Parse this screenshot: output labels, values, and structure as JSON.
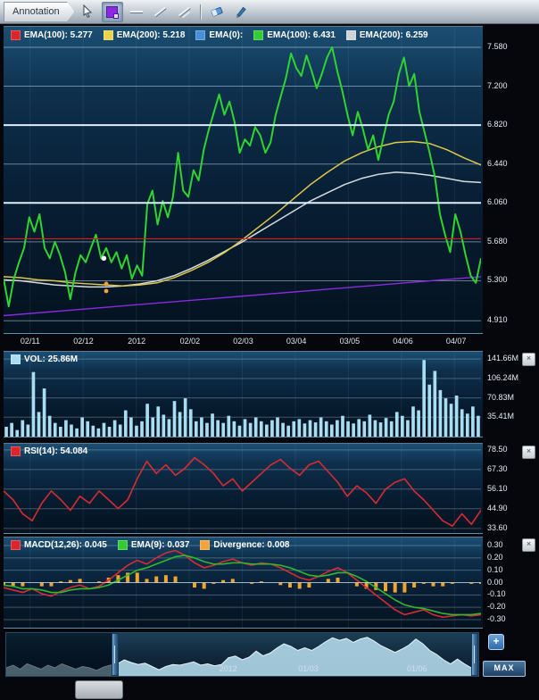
{
  "toolbar": {
    "annotation_label": "Annotation",
    "tools": [
      {
        "name": "cursor-tool",
        "icon": "cursor-icon",
        "selected": false
      },
      {
        "name": "rectangle-annotation-tool",
        "icon": "rectangle-icon",
        "selected": true
      },
      {
        "name": "horizontal-line-tool",
        "icon": "horizontal-line-icon",
        "selected": false
      },
      {
        "name": "diagonal-line-tool",
        "icon": "diagonal-line-icon",
        "selected": false
      },
      {
        "name": "channel-line-tool",
        "icon": "channel-line-icon",
        "selected": false
      },
      {
        "name": "eraser-tool",
        "icon": "eraser-icon",
        "selected": false
      },
      {
        "name": "pen-tool",
        "icon": "pen-icon",
        "selected": false
      }
    ]
  },
  "ui": {
    "close_glyph": "×",
    "plus_label": "+",
    "max_label": "MAX"
  },
  "chart_data": [
    {
      "id": "price",
      "type": "line",
      "grid_alpha": 0.5,
      "legend": [
        {
          "label": "EMA(100): 5.277",
          "color": "#d9262c"
        },
        {
          "label": "EMA(200): 5.218",
          "color": "#e8d44d"
        },
        {
          "label": "EMA(0):",
          "color": "#4a90d9"
        },
        {
          "label": "EMA(100): 6.431",
          "color": "#33cc33"
        },
        {
          "label": "EMA(200): 6.259",
          "color": "#d0d4d8"
        }
      ],
      "ylim": [
        4.79,
        7.78
      ],
      "yticks": [
        {
          "v": 7.58,
          "t": "7.580"
        },
        {
          "v": 7.2,
          "t": "7.200"
        },
        {
          "v": 6.82,
          "t": "6.820"
        },
        {
          "v": 6.44,
          "t": "6.440"
        },
        {
          "v": 6.06,
          "t": "6.060"
        },
        {
          "v": 5.68,
          "t": "5.680"
        },
        {
          "v": 5.3,
          "t": "5.300"
        },
        {
          "v": 4.91,
          "t": "4.910"
        }
      ],
      "xticks": [
        "02/11",
        "02/12",
        "2012",
        "02/02",
        "02/03",
        "03/04",
        "03/05",
        "04/06",
        "04/07"
      ],
      "series": [
        {
          "name": "ema-gray",
          "color": "#d8dce0",
          "width": 1.5,
          "values": [
            5.31,
            5.3,
            5.28,
            5.26,
            5.25,
            5.24,
            5.24,
            5.25,
            5.27,
            5.3,
            5.35,
            5.42,
            5.5,
            5.59,
            5.68,
            5.78,
            5.88,
            5.98,
            6.08,
            6.16,
            6.24,
            6.3,
            6.34,
            6.36,
            6.35,
            6.33,
            6.3,
            6.27,
            6.26
          ]
        },
        {
          "name": "ema-yellow",
          "color": "#ddc84a",
          "width": 1.5,
          "values": [
            5.34,
            5.33,
            5.31,
            5.3,
            5.28,
            5.27,
            5.26,
            5.25,
            5.26,
            5.28,
            5.33,
            5.4,
            5.48,
            5.58,
            5.7,
            5.83,
            5.96,
            6.1,
            6.24,
            6.36,
            6.47,
            6.55,
            6.61,
            6.65,
            6.66,
            6.64,
            6.58,
            6.5,
            6.43
          ]
        },
        {
          "name": "trendline-purple",
          "color": "#8a2be2",
          "width": 1.4,
          "values": [
            4.96,
            5.34
          ]
        },
        {
          "name": "price",
          "color": "#2fd42f",
          "width": 2,
          "values": [
            5.32,
            5.05,
            5.32,
            5.48,
            5.62,
            5.92,
            5.78,
            5.95,
            5.62,
            5.52,
            5.68,
            5.55,
            5.38,
            5.12,
            5.38,
            5.55,
            5.48,
            5.62,
            5.75,
            5.52,
            5.62,
            5.48,
            5.58,
            5.42,
            5.55,
            5.32,
            5.45,
            5.35,
            6.05,
            6.18,
            5.85,
            6.08,
            5.92,
            6.12,
            6.55,
            6.18,
            6.12,
            6.38,
            6.28,
            6.58,
            6.78,
            6.95,
            7.12,
            6.92,
            7.05,
            6.85,
            6.55,
            6.68,
            6.62,
            6.8,
            6.72,
            6.55,
            6.65,
            6.92,
            7.1,
            7.28,
            7.52,
            7.38,
            7.3,
            7.5,
            7.35,
            7.18,
            7.32,
            7.48,
            7.58,
            7.35,
            7.15,
            6.92,
            6.72,
            6.95,
            6.78,
            6.58,
            6.72,
            6.48,
            6.7,
            6.92,
            7.05,
            7.32,
            7.48,
            7.2,
            7.32,
            6.95,
            6.75,
            6.55,
            6.32,
            5.95,
            5.75,
            5.58,
            5.95,
            5.78,
            5.55,
            5.35,
            5.28,
            5.52
          ]
        }
      ],
      "hlines": [
        {
          "v": 6.82,
          "color": "#dfeefc",
          "w": 2
        },
        {
          "v": 6.06,
          "color": "#dfeefc",
          "w": 2
        },
        {
          "v": 5.71,
          "color": "#cc2222",
          "w": 1.2
        }
      ],
      "markers": [
        {
          "x": 21,
          "v": 5.52,
          "color": "#ffffff",
          "r": 2.8
        },
        {
          "x": 21.5,
          "v": 5.27,
          "color": "#f2a33c",
          "r": 2.4
        },
        {
          "x": 21.5,
          "v": 5.2,
          "color": "#f2a33c",
          "r": 2.4
        }
      ]
    },
    {
      "id": "volume",
      "type": "bar",
      "grid_alpha": 0.3,
      "legend": [
        {
          "label": "VOL: 25.86M",
          "color": "#a9def2"
        }
      ],
      "color": "#a9def2",
      "ylim": [
        0,
        155
      ],
      "yticks": [
        {
          "v": 141.66,
          "t": "141.66M"
        },
        {
          "v": 106.24,
          "t": "106.24M"
        },
        {
          "v": 70.83,
          "t": "70.83M"
        },
        {
          "v": 35.41,
          "t": "35.41M"
        }
      ],
      "values": [
        18,
        25,
        12,
        30,
        22,
        118,
        45,
        88,
        38,
        25,
        18,
        30,
        22,
        15,
        35,
        28,
        20,
        15,
        25,
        18,
        30,
        22,
        48,
        35,
        20,
        28,
        60,
        35,
        55,
        40,
        32,
        65,
        45,
        70,
        50,
        28,
        35,
        25,
        42,
        30,
        25,
        38,
        28,
        20,
        32,
        25,
        35,
        28,
        22,
        30,
        35,
        25,
        20,
        28,
        32,
        24,
        30,
        26,
        35,
        28,
        22,
        30,
        38,
        28,
        24,
        32,
        28,
        40,
        30,
        26,
        34,
        28,
        45,
        38,
        30,
        55,
        48,
        140,
        95,
        120,
        85,
        70,
        60,
        75,
        50,
        42,
        55,
        38
      ]
    },
    {
      "id": "rsi",
      "type": "line",
      "grid_alpha": 0.3,
      "legend": [
        {
          "label": "RSI(14): 54.084",
          "color": "#d9262c"
        }
      ],
      "ylim": [
        31,
        82
      ],
      "yticks": [
        {
          "v": 78.5,
          "t": "78.50"
        },
        {
          "v": 67.3,
          "t": "67.30"
        },
        {
          "v": 56.1,
          "t": "56.10"
        },
        {
          "v": 44.9,
          "t": "44.90"
        },
        {
          "v": 33.6,
          "t": "33.60"
        }
      ],
      "series": [
        {
          "name": "rsi",
          "color": "#d92b33",
          "width": 1.6,
          "values": [
            55,
            50,
            42,
            38,
            48,
            55,
            50,
            44,
            52,
            48,
            55,
            50,
            45,
            50,
            62,
            72,
            65,
            70,
            64,
            68,
            74,
            70,
            65,
            58,
            62,
            55,
            60,
            65,
            70,
            73,
            68,
            64,
            70,
            72,
            66,
            60,
            52,
            58,
            54,
            48,
            56,
            60,
            62,
            55,
            50,
            44,
            38,
            35,
            42,
            36,
            44
          ]
        }
      ]
    },
    {
      "id": "macd",
      "type": "macd",
      "grid_alpha": 0.3,
      "legend": [
        {
          "label": "MACD(12,26): 0.045",
          "color": "#d9262c"
        },
        {
          "label": "EMA(9): 0.037",
          "color": "#33cc33"
        },
        {
          "label": "Divergence: 0.008",
          "color": "#f2a33c"
        }
      ],
      "hist_color": "#f0a432",
      "ylim": [
        -0.365,
        0.365
      ],
      "yticks": [
        {
          "v": 0.3,
          "t": "0.30"
        },
        {
          "v": 0.2,
          "t": "0.20"
        },
        {
          "v": 0.1,
          "t": "0.10"
        },
        {
          "v": 0.0,
          "t": "0.00"
        },
        {
          "v": -0.1,
          "t": "-0.10"
        },
        {
          "v": -0.2,
          "t": "-0.20"
        },
        {
          "v": -0.3,
          "t": "-0.30"
        }
      ],
      "hlines": [
        {
          "v": 0,
          "color": "rgba(225,240,250,0.6)",
          "w": 1
        }
      ],
      "series": [
        {
          "name": "macd",
          "color": "#d92b33",
          "width": 1.6,
          "values": [
            -0.04,
            -0.06,
            -0.08,
            -0.05,
            -0.09,
            -0.11,
            -0.07,
            -0.04,
            -0.02,
            -0.05,
            -0.03,
            0.02,
            0.08,
            0.14,
            0.18,
            0.15,
            0.2,
            0.24,
            0.26,
            0.22,
            0.16,
            0.12,
            0.14,
            0.17,
            0.19,
            0.16,
            0.14,
            0.16,
            0.15,
            0.12,
            0.08,
            0.04,
            0.02,
            0.05,
            0.09,
            0.12,
            0.08,
            0.02,
            -0.04,
            -0.1,
            -0.16,
            -0.22,
            -0.26,
            -0.24,
            -0.22,
            -0.26,
            -0.28,
            -0.27,
            -0.26,
            -0.27,
            -0.26
          ]
        },
        {
          "name": "signal",
          "color": "#2fb92f",
          "width": 1.6,
          "values": [
            -0.02,
            -0.03,
            -0.05,
            -0.05,
            -0.06,
            -0.08,
            -0.08,
            -0.06,
            -0.05,
            -0.05,
            -0.04,
            -0.02,
            0.02,
            0.06,
            0.1,
            0.12,
            0.15,
            0.18,
            0.21,
            0.22,
            0.2,
            0.17,
            0.15,
            0.15,
            0.16,
            0.16,
            0.15,
            0.15,
            0.15,
            0.14,
            0.12,
            0.09,
            0.06,
            0.05,
            0.06,
            0.08,
            0.08,
            0.05,
            0.01,
            -0.04,
            -0.09,
            -0.14,
            -0.18,
            -0.2,
            -0.21,
            -0.23,
            -0.25,
            -0.26,
            -0.26,
            -0.26,
            -0.25
          ]
        }
      ]
    },
    {
      "id": "navigator",
      "type": "area",
      "vgrid": false,
      "color": "#b9e2f4",
      "ylim": [
        4.7,
        7.9
      ],
      "sel_start": 23,
      "labels": [
        {
          "t": "2012",
          "x": 47
        },
        {
          "t": "01/03",
          "x": 64
        },
        {
          "t": "01/06",
          "x": 87
        }
      ],
      "values": [
        5.3,
        5.5,
        5.2,
        5.6,
        5.4,
        5.2,
        5.5,
        5.3,
        5.6,
        5.4,
        5.2,
        5.4,
        5.3,
        5.1,
        5.35,
        5.5,
        5.6,
        5.9,
        5.7,
        5.55,
        5.65,
        5.4,
        5.15,
        5.4,
        5.55,
        5.5,
        5.62,
        5.75,
        5.5,
        5.6,
        5.45,
        5.55,
        6.05,
        6.18,
        5.9,
        6.1,
        6.55,
        6.2,
        6.4,
        6.78,
        7.1,
        6.9,
        6.6,
        6.8,
        6.6,
        6.9,
        7.25,
        7.55,
        7.35,
        7.5,
        7.2,
        7.45,
        7.58,
        7.3,
        6.95,
        6.7,
        6.45,
        6.7,
        7.0,
        7.45,
        7.1,
        6.6,
        6.3,
        5.9,
        5.6,
        5.95,
        5.6,
        5.3,
        5.5
      ]
    }
  ]
}
